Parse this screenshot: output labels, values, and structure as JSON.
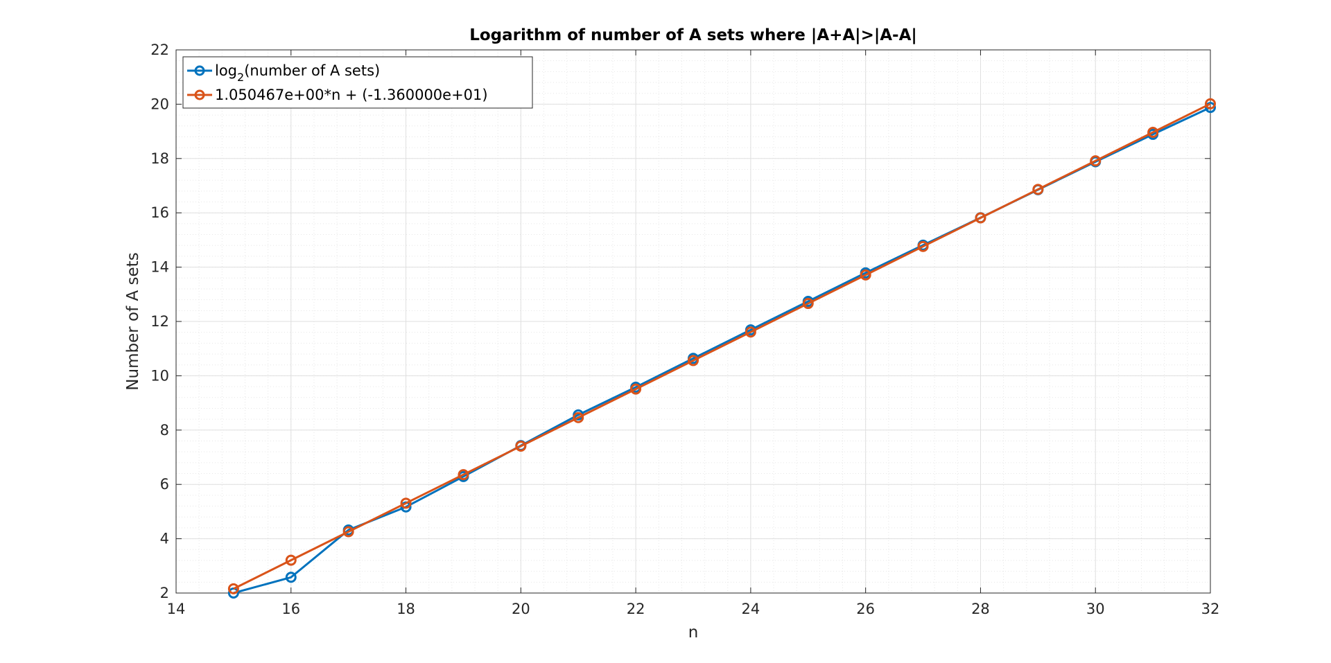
{
  "chart_data": {
    "type": "line",
    "title": "Logarithm of number of A sets where |A+A|>|A-A|",
    "xlabel": "n",
    "ylabel": "Number of A sets",
    "xlim": [
      14,
      32
    ],
    "ylim": [
      2,
      22
    ],
    "xticks": [
      "14",
      "16",
      "18",
      "20",
      "22",
      "24",
      "26",
      "28",
      "30",
      "32"
    ],
    "yticks": [
      "2",
      "4",
      "6",
      "8",
      "10",
      "12",
      "14",
      "16",
      "18",
      "20",
      "22"
    ],
    "grid": true,
    "minor_grid": true,
    "legend_position": "top-left",
    "x": [
      15,
      16,
      17,
      18,
      19,
      20,
      21,
      22,
      23,
      24,
      25,
      26,
      27,
      28,
      29,
      30,
      31,
      32
    ],
    "series": [
      {
        "name_base": "log",
        "name_sub": "2",
        "name_rest": "(number of A sets)",
        "color": "#0072bd",
        "values": [
          2.0,
          2.58,
          4.32,
          5.17,
          6.29,
          7.43,
          8.56,
          9.58,
          10.64,
          11.69,
          12.74,
          13.79,
          14.81,
          15.82,
          16.85,
          17.88,
          18.89,
          19.88
        ]
      },
      {
        "name": "1.050467e+00*n + (-1.360000e+01)",
        "color": "#d95319",
        "values": [
          2.157,
          3.208,
          4.258,
          5.308,
          6.359,
          7.409,
          8.46,
          9.51,
          10.561,
          11.611,
          12.662,
          13.712,
          14.763,
          15.813,
          16.864,
          17.914,
          18.964,
          20.015
        ]
      }
    ]
  }
}
